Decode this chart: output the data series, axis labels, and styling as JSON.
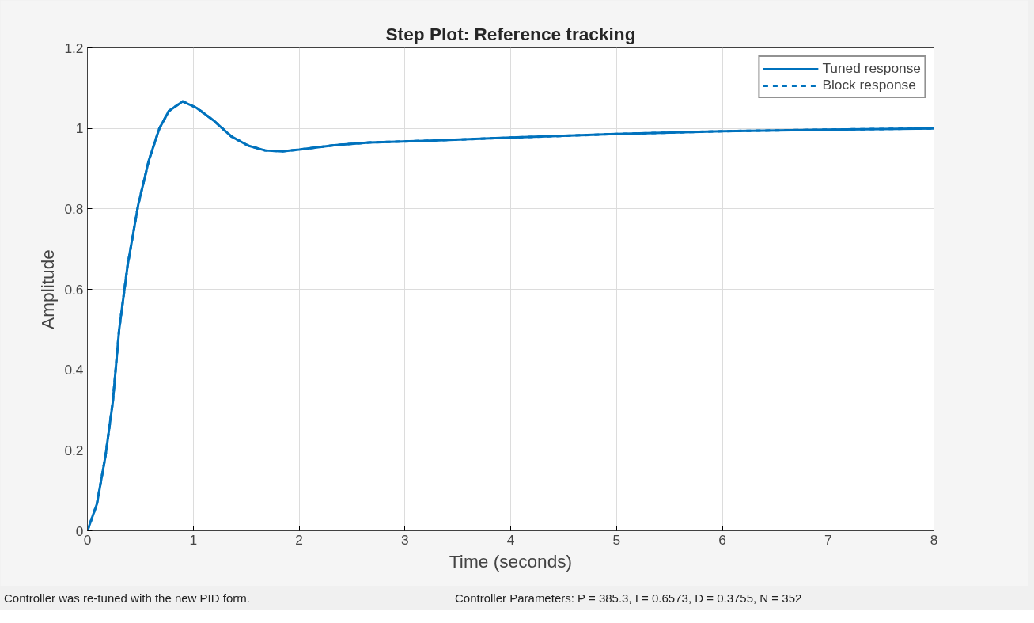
{
  "chart_data": {
    "type": "line",
    "title": "Step Plot: Reference tracking",
    "xlabel": "Time (seconds)",
    "ylabel": "Amplitude",
    "x": [
      0,
      0.09,
      0.17,
      0.24,
      0.3,
      0.38,
      0.48,
      0.58,
      0.68,
      0.77,
      0.9,
      1.03,
      1.19,
      1.36,
      1.52,
      1.68,
      1.84,
      2.0,
      2.33,
      2.66,
      3.18,
      4,
      5,
      6,
      7,
      8
    ],
    "series": [
      {
        "name": "Tuned response",
        "color": "#0072bd",
        "line_style": "solid",
        "values": [
          0,
          0.067,
          0.185,
          0.32,
          0.5,
          0.66,
          0.81,
          0.92,
          1.0,
          1.043,
          1.067,
          1.051,
          1.02,
          0.98,
          0.957,
          0.945,
          0.943,
          0.947,
          0.958,
          0.965,
          0.969,
          0.977,
          0.986,
          0.993,
          0.997,
          1.0
        ]
      },
      {
        "name": "Block response",
        "color": "#0072bd",
        "line_style": "dashed",
        "values": [
          0,
          0.067,
          0.185,
          0.32,
          0.5,
          0.66,
          0.81,
          0.92,
          1.0,
          1.043,
          1.067,
          1.051,
          1.02,
          0.98,
          0.957,
          0.945,
          0.943,
          0.947,
          0.958,
          0.965,
          0.969,
          0.977,
          0.986,
          0.993,
          0.997,
          1.0
        ]
      }
    ],
    "xlim": [
      0,
      8
    ],
    "xticks": [
      0,
      1,
      2,
      3,
      4,
      5,
      6,
      7,
      8
    ],
    "ylim": [
      0,
      1.2
    ],
    "yticks": [
      0,
      0.2,
      0.4,
      0.6,
      0.8,
      1,
      1.2
    ],
    "grid": true,
    "legend": "top right",
    "annotations": [
      "Controller was re-tuned with the new PID form.",
      "Controller Parameters: P = 385.3, I = 0.6573, D = 0.3755, N = 352"
    ]
  }
}
